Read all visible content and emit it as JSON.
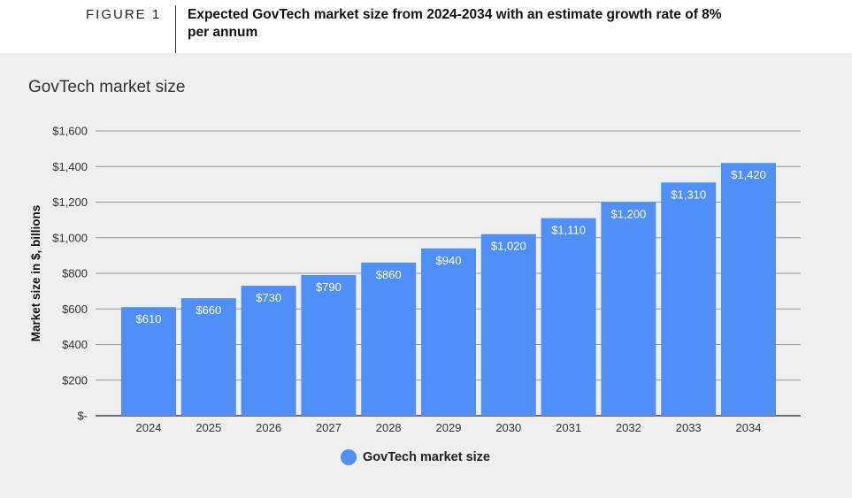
{
  "figure": {
    "label": "FIGURE 1",
    "title": "Expected GovTech market size from 2024-2034 with an estimate growth rate of 8% per annum"
  },
  "chart_data": {
    "type": "bar",
    "title": "GovTech market size",
    "ylabel": "Market size in $, billions",
    "xlabel": "",
    "categories": [
      "2024",
      "2025",
      "2026",
      "2027",
      "2028",
      "2029",
      "2030",
      "2031",
      "2032",
      "2033",
      "2034"
    ],
    "series": [
      {
        "name": "GovTech market size",
        "values": [
          610,
          660,
          730,
          790,
          860,
          940,
          1020,
          1110,
          1200,
          1310,
          1420
        ],
        "labels": [
          "$610",
          "$660",
          "$730",
          "$790",
          "$860",
          "$940",
          "$1,020",
          "$1,110",
          "$1,200",
          "$1,310",
          "$1,420"
        ],
        "color": "#4f8ff7"
      }
    ],
    "ylim": [
      0,
      1600
    ],
    "yticks": [
      0,
      200,
      400,
      600,
      800,
      1000,
      1200,
      1400,
      1600
    ],
    "ytick_labels": [
      "$-",
      "$200",
      "$400",
      "$600",
      "$800",
      "$1,000",
      "$1,200",
      "$1,400",
      "$1,600"
    ],
    "grid": true,
    "legend_position": "bottom"
  },
  "colors": {
    "bar": "#4f8ff7",
    "panel_background": "#efeff0",
    "gridline": "#9a9a9a"
  }
}
